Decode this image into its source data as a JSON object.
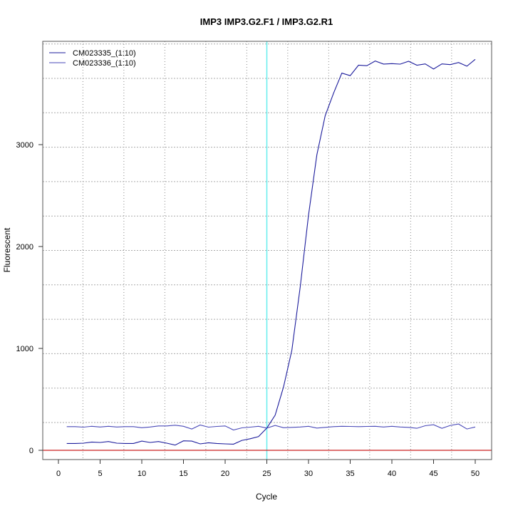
{
  "chart_data": {
    "type": "line",
    "title": "IMP3  IMP3.G2.F1 / IMP3.G2.R1",
    "xlabel": "Cycle",
    "ylabel": "Fluorescent",
    "xlim": [
      -2,
      52
    ],
    "ylim": [
      -95,
      4050
    ],
    "x_ticks": [
      0,
      5,
      10,
      15,
      20,
      25,
      30,
      35,
      40,
      45,
      50
    ],
    "y_ticks": [
      0,
      1000,
      2000,
      3000
    ],
    "grid": true,
    "legend_position": "top-left",
    "threshold_cycle": 25,
    "baseline_value": 0,
    "colors": {
      "threshold": "#66eeee",
      "baseline": "#cc2222",
      "series1": "#1c1c9c",
      "series2": "#4a4ab8"
    },
    "x": [
      1,
      2,
      3,
      4,
      5,
      6,
      7,
      8,
      9,
      10,
      11,
      12,
      13,
      14,
      15,
      16,
      17,
      18,
      19,
      20,
      21,
      22,
      23,
      24,
      25,
      26,
      27,
      28,
      29,
      30,
      31,
      32,
      33,
      34,
      35,
      36,
      37,
      38,
      39,
      40,
      41,
      42,
      43,
      44,
      45,
      46,
      47,
      48,
      49,
      50
    ],
    "series": [
      {
        "name": "CM023335_(1:10)",
        "values": [
          67,
          67,
          70,
          81,
          77,
          86,
          70,
          67,
          67,
          90,
          77,
          86,
          70,
          51,
          93,
          90,
          63,
          74,
          67,
          63,
          60,
          97,
          113,
          134,
          218,
          345,
          621,
          981,
          1600,
          2307,
          2899,
          3284,
          3504,
          3702,
          3677,
          3780,
          3775,
          3821,
          3791,
          3795,
          3790,
          3818,
          3780,
          3792,
          3743,
          3792,
          3785,
          3806,
          3770,
          3837
        ]
      },
      {
        "name": "CM023336_(1:10)",
        "values": [
          232,
          232,
          227,
          236,
          229,
          236,
          229,
          232,
          232,
          222,
          229,
          239,
          239,
          246,
          236,
          209,
          248,
          227,
          234,
          239,
          199,
          220,
          227,
          236,
          218,
          244,
          222,
          225,
          229,
          236,
          218,
          225,
          232,
          236,
          234,
          232,
          234,
          236,
          229,
          236,
          229,
          225,
          216,
          241,
          251,
          216,
          244,
          258,
          209,
          229
        ]
      }
    ]
  }
}
